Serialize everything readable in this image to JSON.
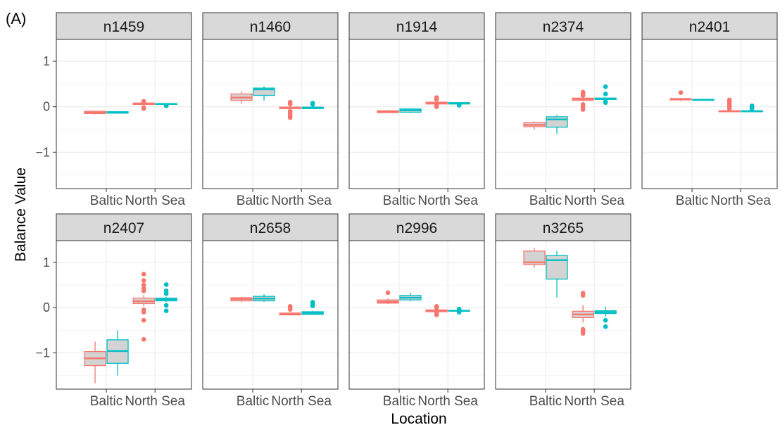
{
  "figure_label": "(A)",
  "colors": {
    "pink": "#F8766D",
    "teal": "#00BFC4",
    "strip": "#D9D9D9",
    "box_fill": "#D3D3D3"
  },
  "chart_data": {
    "type": "box",
    "xlabel": "Location",
    "ylabel": "Balance Value",
    "categories": [
      "Baltic",
      "North Sea"
    ],
    "yticks": [
      {
        "v": 1,
        "label": "1"
      },
      {
        "v": 0,
        "label": "0"
      },
      {
        "v": -1,
        "label": "−1"
      }
    ],
    "ylim": [
      -1.8,
      1.48
    ],
    "panels": [
      {
        "name": "n1459",
        "boxes": [
          {
            "cat": 0,
            "series": 0,
            "q1": -0.15,
            "med": -0.13,
            "q3": -0.1,
            "lo": -0.17,
            "hi": -0.09,
            "out": []
          },
          {
            "cat": 0,
            "series": 1,
            "q1": -0.14,
            "med": -0.13,
            "q3": -0.11,
            "lo": -0.14,
            "hi": -0.11,
            "out": []
          },
          {
            "cat": 1,
            "series": 0,
            "q1": 0.05,
            "med": 0.07,
            "q3": 0.08,
            "lo": 0.04,
            "hi": 0.09,
            "out": [
              0.11,
              -0.02,
              -0.04,
              0.12
            ]
          },
          {
            "cat": 1,
            "series": 1,
            "q1": 0.05,
            "med": 0.06,
            "q3": 0.07,
            "lo": 0.05,
            "hi": 0.08,
            "out": [
              0.03,
              0.02
            ]
          }
        ]
      },
      {
        "name": "n1460",
        "boxes": [
          {
            "cat": 0,
            "series": 0,
            "q1": 0.14,
            "med": 0.2,
            "q3": 0.28,
            "lo": 0.06,
            "hi": 0.33,
            "out": []
          },
          {
            "cat": 0,
            "series": 1,
            "q1": 0.25,
            "med": 0.38,
            "q3": 0.41,
            "lo": 0.13,
            "hi": 0.45,
            "out": []
          },
          {
            "cat": 1,
            "series": 0,
            "q1": -0.04,
            "med": -0.02,
            "q3": -0.01,
            "lo": -0.06,
            "hi": 0.01,
            "out": [
              0.1,
              0.06,
              -0.1,
              -0.15,
              -0.2,
              -0.24
            ]
          },
          {
            "cat": 1,
            "series": 1,
            "q1": -0.04,
            "med": -0.02,
            "q3": -0.01,
            "lo": -0.05,
            "hi": 0.0,
            "out": [
              0.08,
              0.05
            ]
          }
        ]
      },
      {
        "name": "n1914",
        "boxes": [
          {
            "cat": 0,
            "series": 0,
            "q1": -0.13,
            "med": -0.11,
            "q3": -0.09,
            "lo": -0.13,
            "hi": -0.09,
            "out": []
          },
          {
            "cat": 0,
            "series": 1,
            "q1": -0.12,
            "med": -0.08,
            "q3": -0.05,
            "lo": -0.14,
            "hi": -0.04,
            "out": []
          },
          {
            "cat": 1,
            "series": 0,
            "q1": 0.06,
            "med": 0.08,
            "q3": 0.1,
            "lo": 0.05,
            "hi": 0.11,
            "out": [
              0.2,
              0.16,
              0.02,
              0.0
            ]
          },
          {
            "cat": 1,
            "series": 1,
            "q1": 0.06,
            "med": 0.08,
            "q3": 0.09,
            "lo": 0.06,
            "hi": 0.09,
            "out": [
              0.04,
              0.03
            ]
          }
        ]
      },
      {
        "name": "n2374",
        "boxes": [
          {
            "cat": 0,
            "series": 0,
            "q1": -0.44,
            "med": -0.4,
            "q3": -0.35,
            "lo": -0.5,
            "hi": -0.33,
            "out": []
          },
          {
            "cat": 0,
            "series": 1,
            "q1": -0.45,
            "med": -0.28,
            "q3": -0.22,
            "lo": -0.6,
            "hi": -0.18,
            "out": []
          },
          {
            "cat": 1,
            "series": 0,
            "q1": 0.14,
            "med": 0.17,
            "q3": 0.19,
            "lo": 0.12,
            "hi": 0.21,
            "out": [
              0.32,
              0.28,
              0.25,
              0.05,
              0.0,
              -0.06
            ]
          },
          {
            "cat": 1,
            "series": 1,
            "q1": 0.16,
            "med": 0.18,
            "q3": 0.19,
            "lo": 0.15,
            "hi": 0.2,
            "out": [
              0.44,
              0.28,
              0.11,
              0.09
            ]
          }
        ]
      },
      {
        "name": "n2401",
        "boxes": [
          {
            "cat": 0,
            "series": 0,
            "q1": 0.15,
            "med": 0.17,
            "q3": 0.18,
            "lo": 0.12,
            "hi": 0.19,
            "out": [
              0.31
            ]
          },
          {
            "cat": 0,
            "series": 1,
            "q1": 0.14,
            "med": 0.15,
            "q3": 0.16,
            "lo": 0.14,
            "hi": 0.16,
            "out": []
          },
          {
            "cat": 1,
            "series": 0,
            "q1": -0.11,
            "med": -0.1,
            "q3": -0.09,
            "lo": -0.11,
            "hi": -0.09,
            "out": [
              0.15,
              0.12,
              0.08,
              0.04,
              0.0,
              -0.04
            ]
          },
          {
            "cat": 1,
            "series": 1,
            "q1": -0.11,
            "med": -0.1,
            "q3": -0.09,
            "lo": -0.11,
            "hi": -0.08,
            "out": [
              0.02,
              0.0,
              -0.04
            ]
          }
        ]
      },
      {
        "name": "n2407",
        "boxes": [
          {
            "cat": 0,
            "series": 0,
            "q1": -1.28,
            "med": -1.12,
            "q3": -0.97,
            "lo": -1.67,
            "hi": -0.75,
            "out": []
          },
          {
            "cat": 0,
            "series": 1,
            "q1": -1.23,
            "med": -0.96,
            "q3": -0.71,
            "lo": -1.5,
            "hi": -0.5,
            "out": []
          },
          {
            "cat": 1,
            "series": 0,
            "q1": 0.09,
            "med": 0.14,
            "q3": 0.21,
            "lo": 0.03,
            "hi": 0.28,
            "out": [
              0.74,
              0.6,
              0.5,
              0.43,
              0.37,
              -0.05,
              -0.1,
              -0.28,
              -0.7
            ]
          },
          {
            "cat": 1,
            "series": 1,
            "q1": 0.15,
            "med": 0.18,
            "q3": 0.21,
            "lo": 0.13,
            "hi": 0.24,
            "out": [
              0.51,
              0.37,
              0.31,
              0.05,
              -0.07
            ]
          }
        ]
      },
      {
        "name": "n2658",
        "boxes": [
          {
            "cat": 0,
            "series": 0,
            "q1": 0.15,
            "med": 0.19,
            "q3": 0.22,
            "lo": 0.12,
            "hi": 0.24,
            "out": []
          },
          {
            "cat": 0,
            "series": 1,
            "q1": 0.15,
            "med": 0.2,
            "q3": 0.25,
            "lo": 0.13,
            "hi": 0.3,
            "out": []
          },
          {
            "cat": 1,
            "series": 0,
            "q1": -0.16,
            "med": -0.14,
            "q3": -0.12,
            "lo": -0.17,
            "hi": -0.11,
            "out": [
              0.03,
              0.01,
              -0.04
            ]
          },
          {
            "cat": 1,
            "series": 1,
            "q1": -0.15,
            "med": -0.12,
            "q3": -0.09,
            "lo": -0.16,
            "hi": -0.07,
            "out": [
              0.12,
              0.08,
              0.04
            ]
          }
        ]
      },
      {
        "name": "n2996",
        "boxes": [
          {
            "cat": 0,
            "series": 0,
            "q1": 0.1,
            "med": 0.13,
            "q3": 0.17,
            "lo": 0.08,
            "hi": 0.2,
            "out": [
              0.33
            ]
          },
          {
            "cat": 0,
            "series": 1,
            "q1": 0.17,
            "med": 0.22,
            "q3": 0.27,
            "lo": 0.14,
            "hi": 0.33,
            "out": []
          },
          {
            "cat": 1,
            "series": 0,
            "q1": -0.09,
            "med": -0.07,
            "q3": -0.05,
            "lo": -0.1,
            "hi": -0.04,
            "out": [
              0.03,
              0.0,
              -0.13,
              -0.16
            ]
          },
          {
            "cat": 1,
            "series": 1,
            "q1": -0.08,
            "med": -0.07,
            "q3": -0.06,
            "lo": -0.08,
            "hi": -0.05,
            "out": [
              -0.03,
              -0.1
            ]
          }
        ]
      },
      {
        "name": "n3265",
        "boxes": [
          {
            "cat": 0,
            "series": 0,
            "q1": 0.95,
            "med": 1.0,
            "q3": 1.25,
            "lo": 0.88,
            "hi": 1.32,
            "out": []
          },
          {
            "cat": 0,
            "series": 1,
            "q1": 0.63,
            "med": 1.05,
            "q3": 1.15,
            "lo": 0.22,
            "hi": 1.25,
            "out": []
          },
          {
            "cat": 1,
            "series": 0,
            "q1": -0.22,
            "med": -0.15,
            "q3": -0.08,
            "lo": -0.33,
            "hi": 0.05,
            "out": [
              0.32,
              0.27,
              -0.48,
              -0.52,
              -0.57
            ]
          },
          {
            "cat": 1,
            "series": 1,
            "q1": -0.13,
            "med": -0.1,
            "q3": -0.07,
            "lo": -0.2,
            "hi": 0.02,
            "out": [
              -0.28,
              -0.42
            ]
          }
        ]
      }
    ]
  }
}
